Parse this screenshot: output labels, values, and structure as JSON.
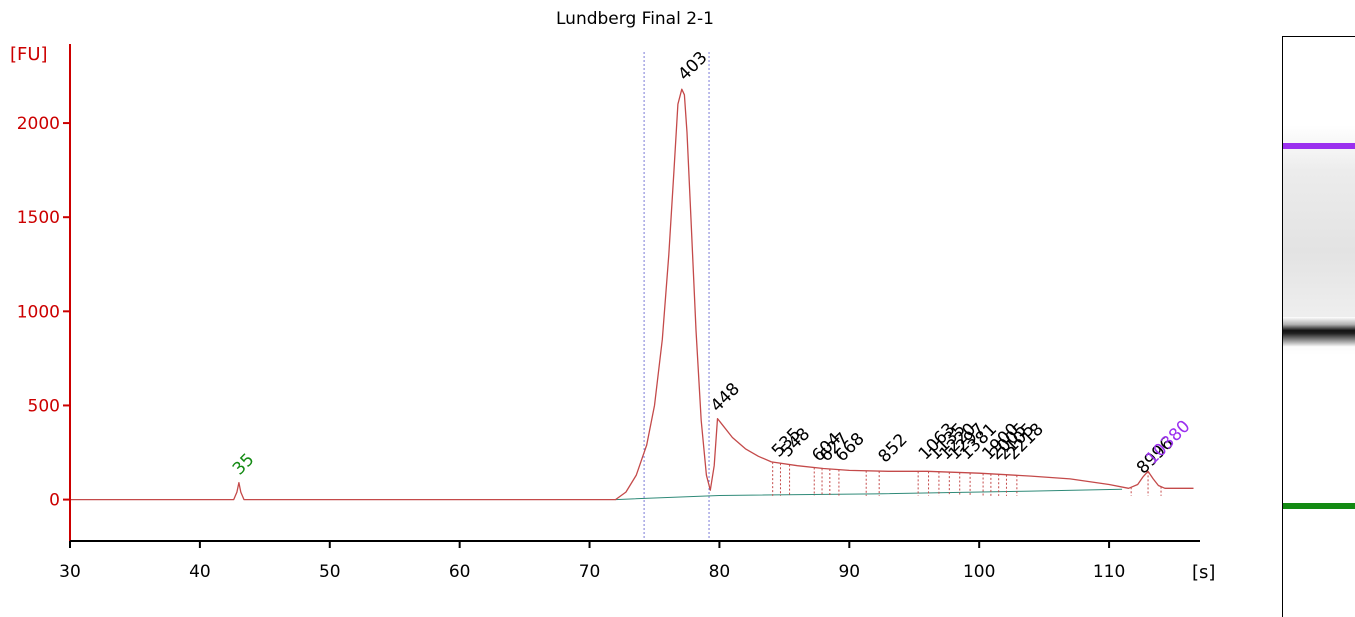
{
  "chart_data": {
    "type": "line",
    "title": "Lundberg Final 2-1",
    "ylabel": "[FU]",
    "xlabel": "[s]",
    "xlim": [
      30,
      117
    ],
    "ylim": [
      -220,
      2420
    ],
    "xticks": [
      "30",
      "40",
      "50",
      "60",
      "70",
      "80",
      "90",
      "100",
      "110"
    ],
    "xtick_values": [
      30,
      40,
      50,
      60,
      70,
      80,
      90,
      100,
      110
    ],
    "yticks": [
      "0",
      "500",
      "1000",
      "1500",
      "2000"
    ],
    "ytick_values": [
      0,
      500,
      1000,
      1500,
      2000
    ],
    "grid": false,
    "colors": {
      "axis_y": "#cc0000",
      "trace": "#c44a4a",
      "baseline": "#2f8a78",
      "marker_lower": "#138a13",
      "marker_upper": "#9b30ef",
      "region_line": "#7a7ad6"
    },
    "region_lines_x": [
      74.2,
      79.2
    ],
    "series": [
      {
        "x": [
          30,
          42.6,
          42.85,
          43.0,
          43.15,
          43.4,
          72.0,
          72.8,
          73.6,
          74.4,
          75.0,
          75.6,
          76.1,
          76.5,
          76.8,
          77.1,
          77.3,
          77.5,
          77.8,
          78.2,
          78.6,
          79.0,
          79.3,
          79.6,
          79.85,
          80.2,
          81.0,
          82.0,
          83.0,
          84.0,
          86.0,
          88.0,
          90.0,
          93.0,
          96.0,
          100.0,
          104.0,
          107.0,
          110.0,
          111.5,
          112.2,
          112.6,
          113.0,
          113.4,
          113.8,
          114.3,
          116.5
        ],
        "y": [
          0,
          0,
          40,
          90,
          40,
          0,
          0,
          40,
          130,
          290,
          500,
          850,
          1300,
          1750,
          2100,
          2180,
          2150,
          1950,
          1500,
          900,
          420,
          130,
          50,
          180,
          430,
          400,
          330,
          270,
          230,
          200,
          180,
          165,
          155,
          150,
          150,
          140,
          125,
          110,
          80,
          60,
          80,
          120,
          150,
          110,
          75,
          60,
          60
        ]
      }
    ],
    "peak_labels": [
      {
        "text": "35",
        "x": 42.9,
        "y": 95,
        "color": "marker_lower"
      },
      {
        "text": "403",
        "x": 77.2,
        "y": 2190,
        "color": "default"
      },
      {
        "text": "448",
        "x": 79.7,
        "y": 430,
        "color": "default"
      },
      {
        "text": "535",
        "x": 84.4,
        "y": 190,
        "color": "default"
      },
      {
        "text": "548",
        "x": 85.1,
        "y": 190,
        "color": "default"
      },
      {
        "text": "604",
        "x": 87.5,
        "y": 165,
        "color": "default"
      },
      {
        "text": "627",
        "x": 88.1,
        "y": 165,
        "color": "default"
      },
      {
        "text": "668",
        "x": 89.3,
        "y": 165,
        "color": "default"
      },
      {
        "text": "852",
        "x": 92.6,
        "y": 160,
        "color": "default"
      },
      {
        "text": "1063",
        "x": 95.7,
        "y": 175,
        "color": "default"
      },
      {
        "text": "1135",
        "x": 96.5,
        "y": 175,
        "color": "default"
      },
      {
        "text": "1220",
        "x": 97.3,
        "y": 175,
        "color": "default"
      },
      {
        "text": "1297",
        "x": 98.0,
        "y": 175,
        "color": "default"
      },
      {
        "text": "1381",
        "x": 98.9,
        "y": 175,
        "color": "default"
      },
      {
        "text": "1900",
        "x": 100.6,
        "y": 175,
        "color": "default"
      },
      {
        "text": "2005",
        "x": 101.2,
        "y": 175,
        "color": "default"
      },
      {
        "text": "2105",
        "x": 101.8,
        "y": 175,
        "color": "default"
      },
      {
        "text": "2218",
        "x": 102.5,
        "y": 175,
        "color": "default"
      },
      {
        "text": "8996",
        "x": 112.5,
        "y": 100,
        "color": "default"
      },
      {
        "text": "10380",
        "x": 113.2,
        "y": 150,
        "color": "marker_upper"
      }
    ],
    "gel": {
      "upper_marker_color": "#9b30ef",
      "lower_marker_color": "#138a13"
    }
  }
}
